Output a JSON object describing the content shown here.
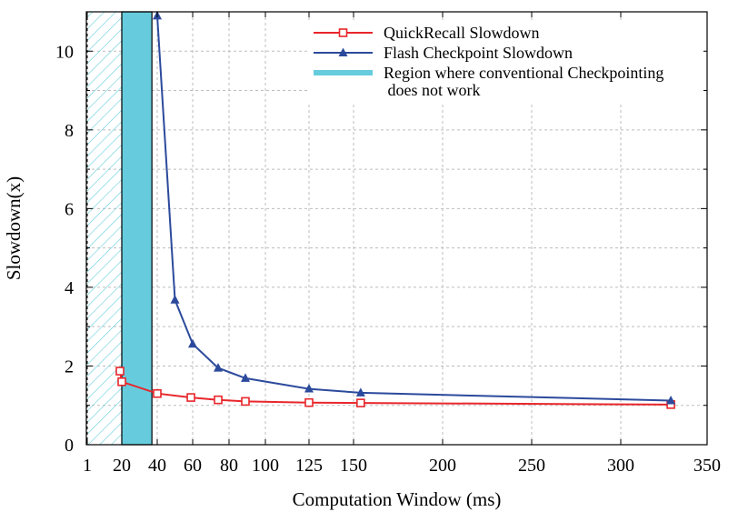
{
  "chart_data": {
    "type": "line",
    "xlabel": "Computation Window (ms)",
    "ylabel": "Slowdown(x)",
    "xlim": [
      1,
      350
    ],
    "ylim": [
      0,
      11
    ],
    "grid": true,
    "legend_position": "top-right",
    "x_ticks": [
      {
        "value": 1,
        "label": "1"
      },
      {
        "value": 20,
        "label": "20"
      },
      {
        "value": 40,
        "label": "40"
      },
      {
        "value": 60,
        "label": "60"
      },
      {
        "value": 80,
        "label": "80"
      },
      {
        "value": 100,
        "label": "100"
      },
      {
        "value": 125,
        "label": "125"
      },
      {
        "value": 150,
        "label": "150"
      },
      {
        "value": 200,
        "label": "200"
      },
      {
        "value": 250,
        "label": "250"
      },
      {
        "value": 300,
        "label": "300"
      },
      {
        "value": 350,
        "label": "350"
      }
    ],
    "y_ticks": [
      {
        "value": 0,
        "label": "0"
      },
      {
        "value": 2,
        "label": "2"
      },
      {
        "value": 4,
        "label": "4"
      },
      {
        "value": 6,
        "label": "6"
      },
      {
        "value": 8,
        "label": "8"
      },
      {
        "value": 10,
        "label": "10"
      }
    ],
    "region": {
      "hatched_x": [
        1,
        20
      ],
      "solid_x": [
        20,
        37
      ],
      "label_line1": "Region where conventional Checkpointing",
      "label_line2": " does not work",
      "color": "#66ccdd"
    },
    "series": [
      {
        "name": "QuickRecall Slowdown",
        "color": "#e8262b",
        "marker": "square",
        "x": [
          19,
          20,
          40,
          59,
          74,
          89,
          125,
          154,
          329
        ],
        "y": [
          1.87,
          1.6,
          1.3,
          1.2,
          1.14,
          1.1,
          1.07,
          1.06,
          1.02
        ]
      },
      {
        "name": "Flash Checkpoint Slowdown",
        "color": "#2c4a9c",
        "marker": "triangle",
        "x": [
          40,
          50,
          60,
          74,
          89,
          125,
          154,
          329
        ],
        "y": [
          10.9,
          3.68,
          2.56,
          1.95,
          1.69,
          1.42,
          1.32,
          1.12
        ]
      }
    ]
  }
}
